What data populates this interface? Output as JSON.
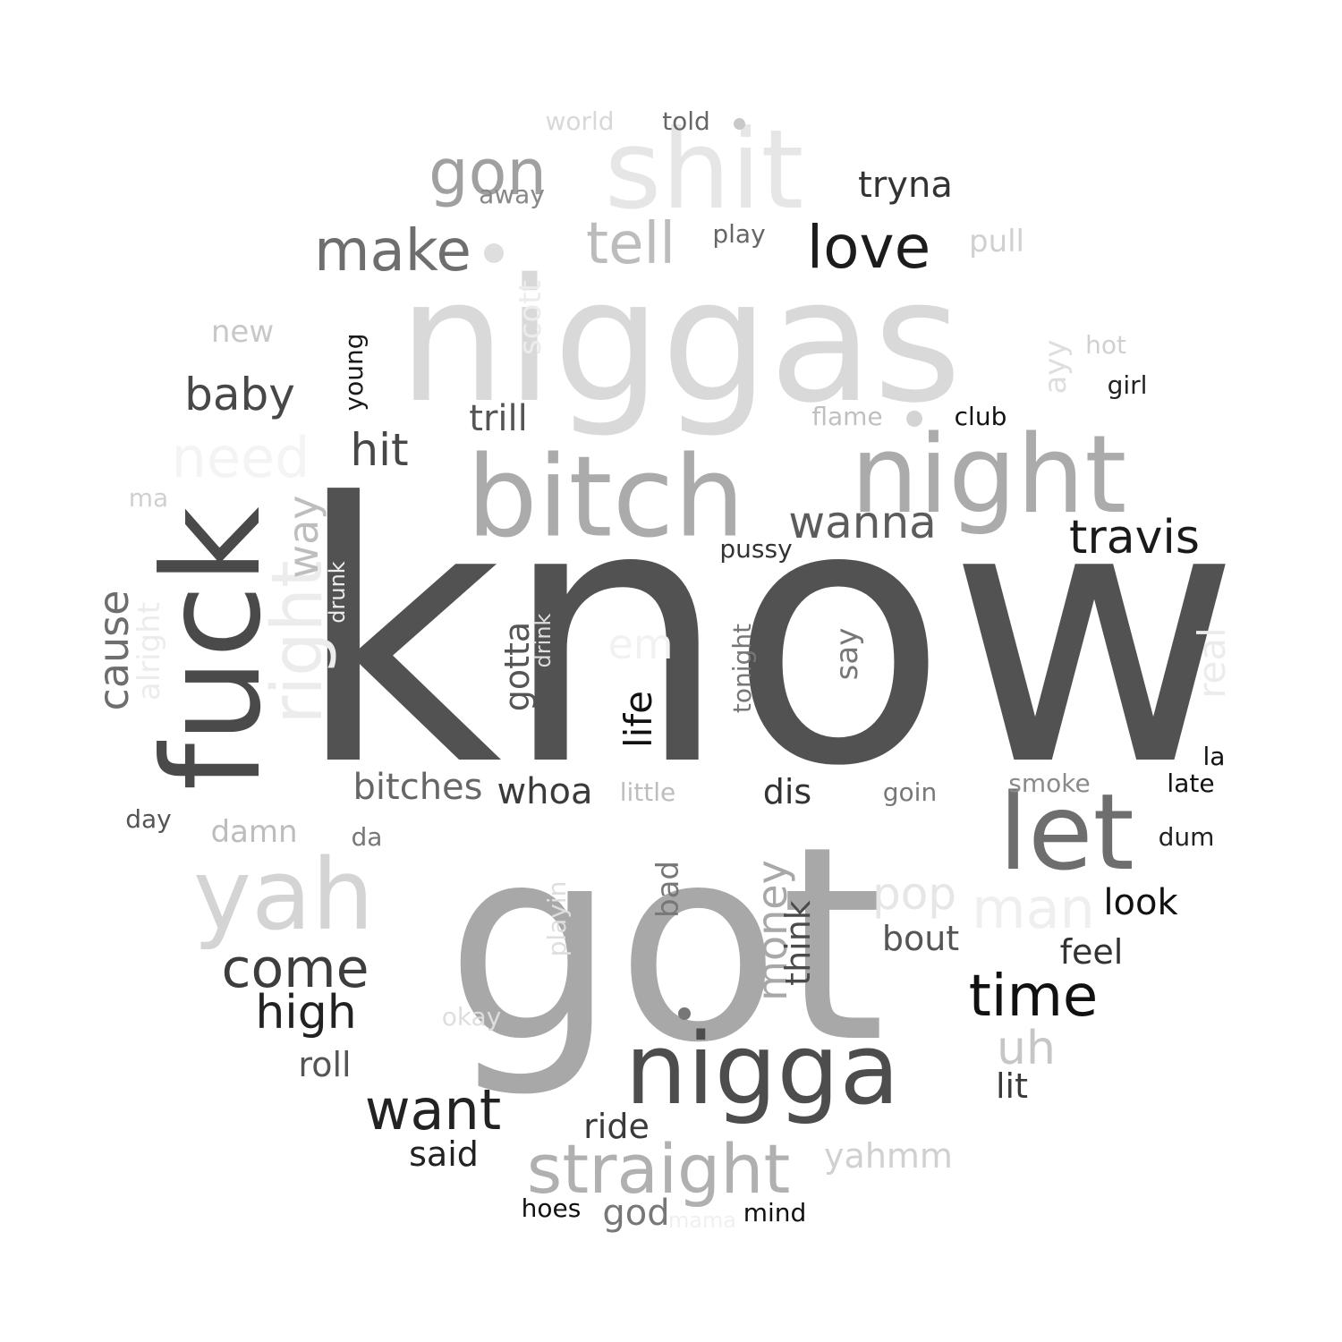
{
  "words": [
    {
      "text": "know",
      "color": "#525252",
      "rotated": false
    },
    {
      "text": "got",
      "color": "#a8a8a8",
      "rotated": false
    },
    {
      "text": "niggas",
      "color": "#d9d9d9",
      "rotated": false
    },
    {
      "text": "shit",
      "color": "#e6e6e6",
      "rotated": false
    },
    {
      "text": "fuck",
      "color": "#4a4a4a",
      "rotated": true
    },
    {
      "text": "bitch",
      "color": "#ababab",
      "rotated": false
    },
    {
      "text": "night",
      "color": "#ababab",
      "rotated": false
    },
    {
      "text": "nigga",
      "color": "#4d4d4d",
      "rotated": false
    },
    {
      "text": "let",
      "color": "#6e6e6e",
      "rotated": false
    },
    {
      "text": "yah",
      "color": "#d4d4d4",
      "rotated": false
    },
    {
      "text": "right",
      "color": "#ececec",
      "rotated": true
    },
    {
      "text": "straight",
      "color": "#b0b0b0",
      "rotated": false
    },
    {
      "text": "gon",
      "color": "#a0a0a0",
      "rotated": false
    },
    {
      "text": "make",
      "color": "#6e6e6e",
      "rotated": false
    },
    {
      "text": "tell",
      "color": "#bcbcbc",
      "rotated": false
    },
    {
      "text": "love",
      "color": "#1c1c1c",
      "rotated": false
    },
    {
      "text": "time",
      "color": "#111111",
      "rotated": false
    },
    {
      "text": "come",
      "color": "#3d3d3d",
      "rotated": false
    },
    {
      "text": "want",
      "color": "#222222",
      "rotated": false
    },
    {
      "text": "high",
      "color": "#222222",
      "rotated": false
    },
    {
      "text": "need",
      "color": "#f4f4f4",
      "rotated": false
    },
    {
      "text": "baby",
      "color": "#474747",
      "rotated": false
    },
    {
      "text": "hit",
      "color": "#474747",
      "rotated": false
    },
    {
      "text": "wanna",
      "color": "#5c5c5c",
      "rotated": false
    },
    {
      "text": "travis",
      "color": "#1a1a1a",
      "rotated": false
    },
    {
      "text": "man",
      "color": "#efefef",
      "rotated": false
    },
    {
      "text": "cause",
      "color": "#6e6e6e",
      "rotated": true
    },
    {
      "text": "way",
      "color": "#bebebe",
      "rotated": true
    },
    {
      "text": "life",
      "color": "#111111",
      "rotated": true
    },
    {
      "text": "money",
      "color": "#a8a8a8",
      "rotated": true
    },
    {
      "text": "uh",
      "color": "#c6c6c6",
      "rotated": false
    },
    {
      "text": "pop",
      "color": "#e6e6e6",
      "rotated": false
    },
    {
      "text": "em",
      "color": "#f2f2f2",
      "rotated": false
    },
    {
      "text": "real",
      "color": "#ececec",
      "rotated": true
    },
    {
      "text": "bitches",
      "color": "#666666",
      "rotated": false
    },
    {
      "text": "whoa",
      "color": "#3a3a3a",
      "rotated": false
    },
    {
      "text": "gotta",
      "color": "#555555",
      "rotated": true
    },
    {
      "text": "trill",
      "color": "#555555",
      "rotated": false
    },
    {
      "text": "tryna",
      "color": "#333333",
      "rotated": false
    },
    {
      "text": "roll",
      "color": "#555555",
      "rotated": false
    },
    {
      "text": "ride",
      "color": "#3a3a3a",
      "rotated": false
    },
    {
      "text": "said",
      "color": "#222222",
      "rotated": false
    },
    {
      "text": "god",
      "color": "#777777",
      "rotated": false
    },
    {
      "text": "yahmm",
      "color": "#d0d0d0",
      "rotated": false
    },
    {
      "text": "look",
      "color": "#111111",
      "rotated": false
    },
    {
      "text": "feel",
      "color": "#333333",
      "rotated": false
    },
    {
      "text": "bout",
      "color": "#555555",
      "rotated": false
    },
    {
      "text": "lit",
      "color": "#3a3a3a",
      "rotated": false
    },
    {
      "text": "dis",
      "color": "#333333",
      "rotated": false
    },
    {
      "text": "think",
      "color": "#4a4a4a",
      "rotated": true
    },
    {
      "text": "bad",
      "color": "#777777",
      "rotated": true
    },
    {
      "text": "damn",
      "color": "#bdbdbd",
      "rotated": false
    },
    {
      "text": "scott",
      "color": "#ececec",
      "rotated": true
    },
    {
      "text": "alright",
      "color": "#ececec",
      "rotated": true
    },
    {
      "text": "say",
      "color": "#777777",
      "rotated": true
    },
    {
      "text": "new",
      "color": "#c8c8c8",
      "rotated": false
    },
    {
      "text": "pull",
      "color": "#d0d0d0",
      "rotated": false
    },
    {
      "text": "ayy",
      "color": "#dedede",
      "rotated": true
    },
    {
      "text": "young",
      "color": "#1a1a1a",
      "rotated": true
    },
    {
      "text": "world",
      "color": "#d8d8d8",
      "rotated": false
    },
    {
      "text": "told",
      "color": "#666666",
      "rotated": false
    },
    {
      "text": "away",
      "color": "#888888",
      "rotated": false
    },
    {
      "text": "play",
      "color": "#666666",
      "rotated": false
    },
    {
      "text": "hot",
      "color": "#d0d0d0",
      "rotated": false
    },
    {
      "text": "girl",
      "color": "#222222",
      "rotated": false
    },
    {
      "text": "flame",
      "color": "#c0c0c0",
      "rotated": false
    },
    {
      "text": "club",
      "color": "#111111",
      "rotated": false
    },
    {
      "text": "pussy",
      "color": "#333333",
      "rotated": false
    },
    {
      "text": "ma",
      "color": "#d0d0d0",
      "rotated": false
    },
    {
      "text": "drunk",
      "color": "#ececec",
      "rotated": true
    },
    {
      "text": "drink",
      "color": "#dedede",
      "rotated": true
    },
    {
      "text": "tonight",
      "color": "#777777",
      "rotated": true
    },
    {
      "text": "little",
      "color": "#bdbdbd",
      "rotated": false
    },
    {
      "text": "goin",
      "color": "#777777",
      "rotated": false
    },
    {
      "text": "smoke",
      "color": "#8a8a8a",
      "rotated": false
    },
    {
      "text": "la",
      "color": "#111111",
      "rotated": false
    },
    {
      "text": "late",
      "color": "#111111",
      "rotated": false
    },
    {
      "text": "dum",
      "color": "#222222",
      "rotated": false
    },
    {
      "text": "day",
      "color": "#555555",
      "rotated": false
    },
    {
      "text": "da",
      "color": "#777777",
      "rotated": false
    },
    {
      "text": "playin",
      "color": "#dedede",
      "rotated": true
    },
    {
      "text": "okay",
      "color": "#dedede",
      "rotated": false
    },
    {
      "text": "hoes",
      "color": "#111111",
      "rotated": false
    },
    {
      "text": "mama",
      "color": "#f0f0f0",
      "rotated": false
    },
    {
      "text": "mind",
      "color": "#111111",
      "rotated": false
    }
  ],
  "dots": [
    {
      "color": "#dedede"
    },
    {
      "color": "#d4d4d4"
    },
    {
      "color": "#c8c8c8"
    },
    {
      "color": "#777777"
    }
  ]
}
